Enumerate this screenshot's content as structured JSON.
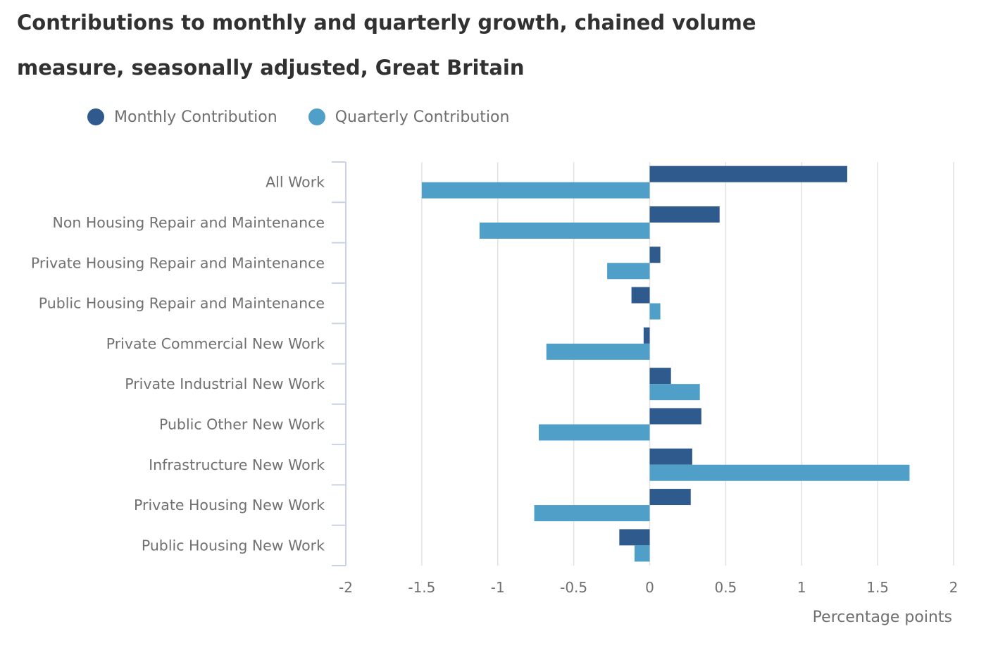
{
  "chart_data": {
    "type": "bar",
    "orientation": "horizontal",
    "title": "Contributions to monthly and quarterly growth, chained volume measure, seasonally adjusted, Great Britain",
    "xlabel": "Percentage points",
    "ylabel": "",
    "xlim": [
      -2,
      2
    ],
    "ticks": [
      "-2",
      "-1.5",
      "-1",
      "-0.5",
      "0",
      "0.5",
      "1",
      "1.5",
      "2"
    ],
    "grid": true,
    "legend_position": "top-left",
    "categories": [
      "All Work",
      "Non Housing Repair and Maintenance",
      "Private Housing Repair and Maintenance",
      "Public Housing Repair and Maintenance",
      "Private Commercial New Work",
      "Private Industrial New Work",
      "Public Other New Work",
      "Infrastructure New Work",
      "Private Housing New Work",
      "Public Housing New Work"
    ],
    "series": [
      {
        "name": "Monthly Contribution",
        "color": "#2e5a8e",
        "values": [
          1.3,
          0.46,
          0.07,
          -0.12,
          -0.04,
          0.14,
          0.34,
          0.28,
          0.27,
          -0.2
        ]
      },
      {
        "name": "Quarterly Contribution",
        "color": "#4f9fc8",
        "values": [
          -1.5,
          -1.12,
          -0.28,
          0.07,
          -0.68,
          0.33,
          -0.73,
          1.71,
          -0.76,
          -0.1
        ]
      }
    ]
  }
}
